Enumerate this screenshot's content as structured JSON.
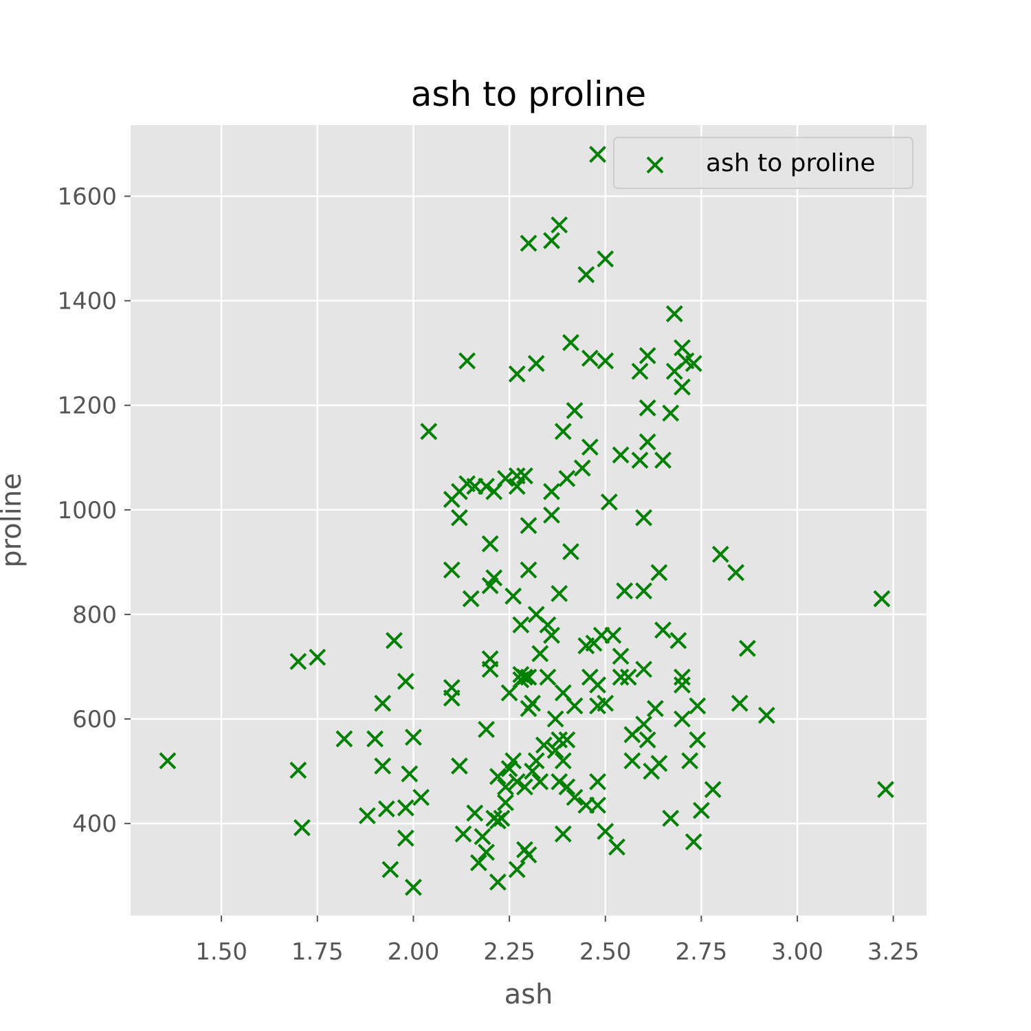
{
  "chart_data": {
    "type": "scatter",
    "title": "ash to proline",
    "xlabel": "ash",
    "ylabel": "proline",
    "xlim": [
      1.2635,
      3.3365
    ],
    "ylim": [
      224,
      1736
    ],
    "xticks": [
      1.5,
      1.75,
      2.0,
      2.25,
      2.5,
      2.75,
      3.0,
      3.25
    ],
    "xtick_labels": [
      "1.50",
      "1.75",
      "2.00",
      "2.25",
      "2.50",
      "2.75",
      "3.00",
      "3.25"
    ],
    "yticks": [
      400,
      600,
      800,
      1000,
      1200,
      1400,
      1600
    ],
    "ytick_labels": [
      "400",
      "600",
      "800",
      "1000",
      "1200",
      "1400",
      "1600"
    ],
    "grid": true,
    "legend": {
      "position": "top-right",
      "entries": [
        "ash to proline"
      ]
    },
    "marker": "x",
    "color": "#008000",
    "background": "#e5e5e5",
    "series": [
      {
        "name": "ash to proline",
        "points": [
          [
            1.36,
            520
          ],
          [
            1.7,
            710
          ],
          [
            1.75,
            718
          ],
          [
            1.7,
            502
          ],
          [
            1.71,
            392
          ],
          [
            1.82,
            562
          ],
          [
            1.88,
            415
          ],
          [
            1.9,
            562
          ],
          [
            1.92,
            630
          ],
          [
            1.92,
            510
          ],
          [
            1.93,
            428
          ],
          [
            1.94,
            312
          ],
          [
            1.95,
            750
          ],
          [
            1.98,
            672
          ],
          [
            1.98,
            430
          ],
          [
            1.98,
            372
          ],
          [
            1.99,
            495
          ],
          [
            2.0,
            565
          ],
          [
            2.0,
            278
          ],
          [
            2.02,
            450
          ],
          [
            2.04,
            1150
          ],
          [
            2.1,
            660
          ],
          [
            2.1,
            640
          ],
          [
            2.1,
            885
          ],
          [
            2.1,
            1020
          ],
          [
            2.12,
            1035
          ],
          [
            2.12,
            985
          ],
          [
            2.12,
            510
          ],
          [
            2.13,
            380
          ],
          [
            2.14,
            1285
          ],
          [
            2.14,
            1050
          ],
          [
            2.15,
            830
          ],
          [
            2.16,
            1045
          ],
          [
            2.16,
            420
          ],
          [
            2.17,
            325
          ],
          [
            2.18,
            375
          ],
          [
            2.19,
            580
          ],
          [
            2.19,
            1045
          ],
          [
            2.19,
            345
          ],
          [
            2.2,
            715
          ],
          [
            2.2,
            695
          ],
          [
            2.2,
            935
          ],
          [
            2.2,
            855
          ],
          [
            2.21,
            870
          ],
          [
            2.21,
            1035
          ],
          [
            2.21,
            410
          ],
          [
            2.22,
            405
          ],
          [
            2.22,
            288
          ],
          [
            2.22,
            490
          ],
          [
            2.23,
            410
          ],
          [
            2.24,
            440
          ],
          [
            2.24,
            470
          ],
          [
            2.24,
            1060
          ],
          [
            2.25,
            650
          ],
          [
            2.25,
            505
          ],
          [
            2.26,
            835
          ],
          [
            2.26,
            520
          ],
          [
            2.27,
            1260
          ],
          [
            2.27,
            1065
          ],
          [
            2.27,
            1045
          ],
          [
            2.27,
            480
          ],
          [
            2.27,
            312
          ],
          [
            2.28,
            780
          ],
          [
            2.28,
            685
          ],
          [
            2.28,
            675
          ],
          [
            2.29,
            1065
          ],
          [
            2.29,
            680
          ],
          [
            2.29,
            470
          ],
          [
            2.29,
            350
          ],
          [
            2.3,
            340
          ],
          [
            2.3,
            1510
          ],
          [
            2.3,
            970
          ],
          [
            2.3,
            885
          ],
          [
            2.3,
            680
          ],
          [
            2.3,
            620
          ],
          [
            2.31,
            630
          ],
          [
            2.31,
            500
          ],
          [
            2.32,
            800
          ],
          [
            2.32,
            1280
          ],
          [
            2.32,
            520
          ],
          [
            2.33,
            725
          ],
          [
            2.33,
            480
          ],
          [
            2.34,
            550
          ],
          [
            2.35,
            680
          ],
          [
            2.35,
            780
          ],
          [
            2.36,
            1515
          ],
          [
            2.36,
            1035
          ],
          [
            2.36,
            990
          ],
          [
            2.36,
            760
          ],
          [
            2.37,
            600
          ],
          [
            2.37,
            540
          ],
          [
            2.38,
            1545
          ],
          [
            2.38,
            840
          ],
          [
            2.38,
            480
          ],
          [
            2.38,
            560
          ],
          [
            2.39,
            1150
          ],
          [
            2.39,
            650
          ],
          [
            2.39,
            520
          ],
          [
            2.39,
            380
          ],
          [
            2.4,
            1060
          ],
          [
            2.4,
            560
          ],
          [
            2.4,
            470
          ],
          [
            2.41,
            1320
          ],
          [
            2.41,
            920
          ],
          [
            2.42,
            1190
          ],
          [
            2.42,
            625
          ],
          [
            2.42,
            450
          ],
          [
            2.44,
            1080
          ],
          [
            2.45,
            1450
          ],
          [
            2.45,
            740
          ],
          [
            2.45,
            435
          ],
          [
            2.46,
            1290
          ],
          [
            2.46,
            1120
          ],
          [
            2.46,
            680
          ],
          [
            2.47,
            745
          ],
          [
            2.48,
            1680
          ],
          [
            2.48,
            625
          ],
          [
            2.48,
            665
          ],
          [
            2.48,
            480
          ],
          [
            2.48,
            435
          ],
          [
            2.49,
            760
          ],
          [
            2.5,
            1480
          ],
          [
            2.5,
            1285
          ],
          [
            2.5,
            630
          ],
          [
            2.5,
            385
          ],
          [
            2.51,
            1015
          ],
          [
            2.52,
            760
          ],
          [
            2.53,
            355
          ],
          [
            2.54,
            1105
          ],
          [
            2.54,
            720
          ],
          [
            2.54,
            680
          ],
          [
            2.55,
            845
          ],
          [
            2.56,
            680
          ],
          [
            2.57,
            520
          ],
          [
            2.57,
            570
          ],
          [
            2.59,
            1095
          ],
          [
            2.59,
            1265
          ],
          [
            2.6,
            985
          ],
          [
            2.6,
            845
          ],
          [
            2.6,
            695
          ],
          [
            2.6,
            590
          ],
          [
            2.61,
            1295
          ],
          [
            2.61,
            1195
          ],
          [
            2.61,
            1130
          ],
          [
            2.61,
            560
          ],
          [
            2.62,
            500
          ],
          [
            2.63,
            620
          ],
          [
            2.64,
            880
          ],
          [
            2.64,
            515
          ],
          [
            2.65,
            1095
          ],
          [
            2.65,
            770
          ],
          [
            2.67,
            1185
          ],
          [
            2.67,
            410
          ],
          [
            2.68,
            1375
          ],
          [
            2.68,
            1265
          ],
          [
            2.69,
            750
          ],
          [
            2.7,
            1310
          ],
          [
            2.7,
            1235
          ],
          [
            2.7,
            680
          ],
          [
            2.7,
            665
          ],
          [
            2.7,
            600
          ],
          [
            2.71,
            1285
          ],
          [
            2.72,
            520
          ],
          [
            2.73,
            1280
          ],
          [
            2.73,
            365
          ],
          [
            2.74,
            625
          ],
          [
            2.74,
            560
          ],
          [
            2.75,
            425
          ],
          [
            2.78,
            465
          ],
          [
            2.8,
            915
          ],
          [
            2.84,
            880
          ],
          [
            2.85,
            630
          ],
          [
            2.87,
            735
          ],
          [
            2.92,
            607
          ],
          [
            3.22,
            830
          ],
          [
            3.23,
            465
          ]
        ]
      }
    ]
  }
}
